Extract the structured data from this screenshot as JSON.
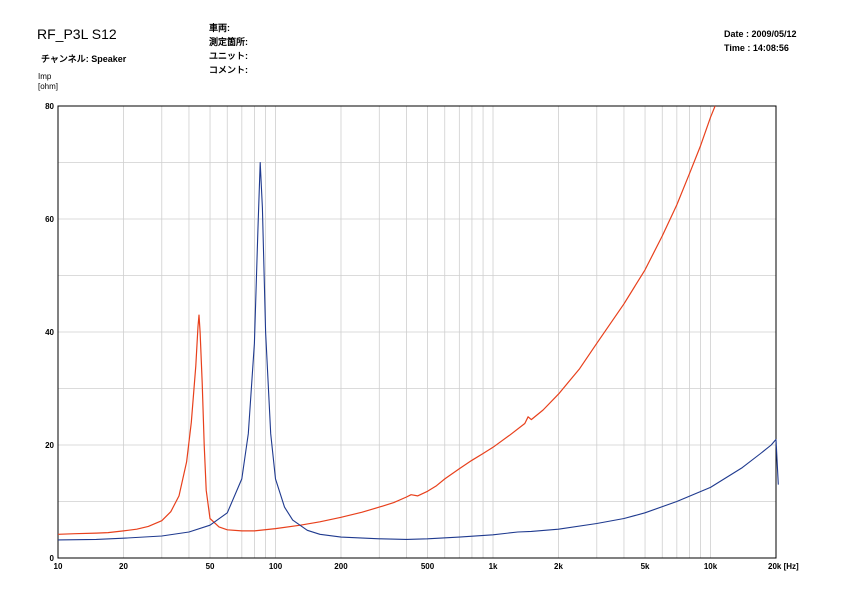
{
  "header": {
    "title": "RF_P3L S12",
    "channel": "チャンネル: Speaker",
    "meta_labels": [
      "車両:",
      "測定箇所:",
      "ユニット:",
      "コメント:"
    ],
    "date": "Date : 2009/05/12",
    "time": "Time : 14:08:56"
  },
  "chart_data": {
    "type": "line",
    "title": "",
    "ylabel": "Imp\n[ohm]",
    "xlabel_unit": "[Hz]",
    "xscale": "log",
    "xlim": [
      10,
      20000
    ],
    "ylim": [
      0,
      80
    ],
    "grid": true,
    "y_ticks": [
      0,
      20,
      40,
      60,
      80
    ],
    "x_ticks": [
      {
        "value": 10,
        "label": "10"
      },
      {
        "value": 20,
        "label": "20"
      },
      {
        "value": 50,
        "label": "50"
      },
      {
        "value": 100,
        "label": "100"
      },
      {
        "value": 200,
        "label": "200"
      },
      {
        "value": 500,
        "label": "500"
      },
      {
        "value": 1000,
        "label": "1k"
      },
      {
        "value": 2000,
        "label": "2k"
      },
      {
        "value": 5000,
        "label": "5k"
      },
      {
        "value": 10000,
        "label": "10k"
      },
      {
        "value": 20000,
        "label": "20k [Hz]"
      }
    ],
    "series": [
      {
        "color": "#e8401c",
        "x": [
          10,
          12,
          15,
          17,
          20,
          23,
          26,
          30,
          33,
          36,
          39,
          41,
          43,
          44,
          44.5,
          45,
          46,
          47,
          48,
          50,
          55,
          60,
          70,
          80,
          100,
          130,
          160,
          200,
          250,
          300,
          350,
          400,
          420,
          450,
          500,
          550,
          600,
          700,
          800,
          900,
          1000,
          1200,
          1400,
          1450,
          1500,
          1700,
          2000,
          2500,
          3000,
          4000,
          5000,
          6000,
          7000,
          8000,
          9000,
          10000,
          10500
        ],
        "y": [
          4.2,
          4.3,
          4.4,
          4.5,
          4.8,
          5.1,
          5.6,
          6.6,
          8.2,
          11.0,
          17.0,
          24.0,
          34.0,
          41.0,
          43.0,
          40.0,
          31.0,
          20.0,
          12.0,
          7.0,
          5.5,
          5.0,
          4.8,
          4.8,
          5.2,
          5.8,
          6.4,
          7.2,
          8.1,
          9.0,
          9.8,
          10.8,
          11.2,
          11.0,
          11.8,
          12.8,
          14.0,
          15.8,
          17.3,
          18.5,
          19.6,
          21.8,
          23.8,
          25.0,
          24.5,
          26.2,
          29.0,
          33.5,
          38.0,
          45.0,
          51.0,
          57.0,
          62.5,
          68.0,
          73.0,
          78.0,
          80.0
        ]
      },
      {
        "color": "#1f3a8f",
        "x": [
          10,
          15,
          20,
          30,
          40,
          50,
          60,
          70,
          75,
          80,
          83,
          85,
          87,
          90,
          95,
          100,
          110,
          120,
          140,
          160,
          200,
          300,
          400,
          500,
          700,
          1000,
          1300,
          1500,
          2000,
          3000,
          4000,
          5000,
          7000,
          10000,
          14000,
          17000,
          19000,
          20000,
          20500
        ],
        "y": [
          3.2,
          3.3,
          3.5,
          3.9,
          4.6,
          5.8,
          8.0,
          14.0,
          22.0,
          38.0,
          58.0,
          70.0,
          62.0,
          40.0,
          22.0,
          14.0,
          9.0,
          6.7,
          4.9,
          4.2,
          3.7,
          3.4,
          3.3,
          3.4,
          3.7,
          4.1,
          4.6,
          4.7,
          5.1,
          6.1,
          7.0,
          8.0,
          10.0,
          12.5,
          16.0,
          18.5,
          20.0,
          21.0,
          13.0
        ]
      }
    ]
  }
}
